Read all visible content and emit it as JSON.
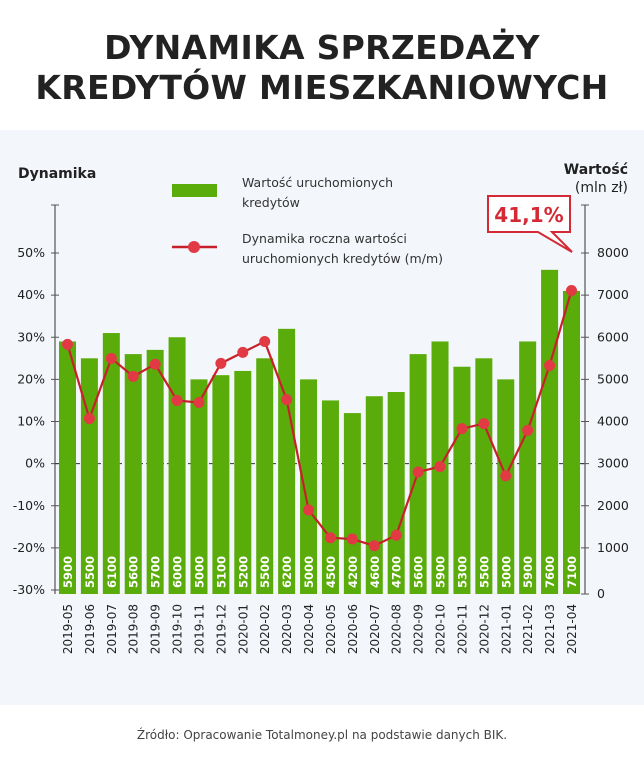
{
  "title_line1": "DYNAMIKA SPRZEDAŻY",
  "title_line2": "KREDYTÓW MIESZKANIOWYCH",
  "source": "Źródło: Opracowanie Totalmoney.pl na podstawie danych BIK.",
  "colors": {
    "bar": "#5aac0a",
    "line": "#c8202a",
    "dot": "#e23a45",
    "callout": "#d42a36"
  },
  "chart_data": {
    "type": "bar+line",
    "ylabel_left": "Dynamika",
    "ylabel_right": "Wartość",
    "ylabel_right_unit": "(mln zł)",
    "yleft_ticks": [
      "50%",
      "40%",
      "30%",
      "20%",
      "10%",
      "0%",
      "-10%",
      "-20%",
      "-30%"
    ],
    "yleft_range": [
      -30,
      50
    ],
    "yright_ticks": [
      "8000",
      "7000",
      "6000",
      "5000",
      "4000",
      "3000",
      "2000",
      "1000",
      "0"
    ],
    "yright_range": [
      0,
      8000
    ],
    "legend": {
      "bar_line1": "Wartość uruchomionych",
      "bar_line2": "kredytów",
      "line_line1": "Dynamika roczna wartości",
      "line_line2": "uruchomionych kredytów (m/m)"
    },
    "callout": "41,1%",
    "categories": [
      "2019-05",
      "2019-06",
      "2019-07",
      "2019-08",
      "2019-09",
      "2019-10",
      "2019-11",
      "2019-12",
      "2020-01",
      "2020-02",
      "2020-03",
      "2020-04",
      "2020-05",
      "2020-06",
      "2020-07",
      "2020-08",
      "2020-09",
      "2020-10",
      "2020-11",
      "2020-12",
      "2021-01",
      "2021-02",
      "2021-03",
      "2021-04"
    ],
    "series": [
      {
        "name": "Wartość uruchomionych kredytów",
        "type": "bar",
        "values": [
          5900,
          5500,
          6100,
          5600,
          5700,
          6000,
          5000,
          5100,
          5200,
          5500,
          6200,
          5000,
          4500,
          4200,
          4600,
          4700,
          5600,
          5900,
          5300,
          5500,
          5000,
          5900,
          7600,
          7100
        ]
      },
      {
        "name": "Dynamika roczna wartości uruchomionych kredytów (m/m)",
        "type": "line",
        "values": [
          28.3,
          10.7,
          25.0,
          20.7,
          23.6,
          15.0,
          14.5,
          23.8,
          26.4,
          29.0,
          15.2,
          -11.0,
          -17.6,
          -17.9,
          -19.5,
          -17.0,
          -2.0,
          -0.7,
          8.3,
          9.5,
          -2.9,
          7.9,
          23.3,
          41.1
        ]
      }
    ]
  }
}
